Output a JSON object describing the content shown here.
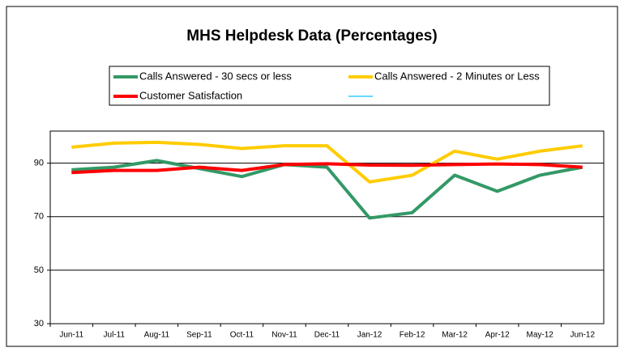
{
  "chart_data": {
    "type": "line",
    "title": "MHS Helpdesk Data (Percentages)",
    "categories": [
      "Jun-11",
      "Jul-11",
      "Aug-11",
      "Sep-11",
      "Oct-11",
      "Nov-11",
      "Dec-11",
      "Jan-12",
      "Feb-12",
      "Mar-12",
      "Apr-12",
      "May-12",
      "Jun-12"
    ],
    "series": [
      {
        "name": "Calls Answered - 30 secs or less",
        "color": "#339966",
        "values": [
          87.5,
          88.5,
          91,
          88,
          85,
          89.5,
          88.5,
          69.5,
          71.5,
          85.5,
          79.5,
          85.5,
          88.5
        ]
      },
      {
        "name": "Calls Answered - 2 Minutes or Less",
        "color": "#ffcc00",
        "values": [
          96,
          97.5,
          97.8,
          97,
          95.5,
          96.5,
          96.5,
          83,
          85.5,
          94.5,
          91.5,
          94.5,
          96.5
        ]
      },
      {
        "name": "Customer Satisfaction",
        "color": "#ff0000",
        "values": [
          86.5,
          87.3,
          87.3,
          88.5,
          87.3,
          89.5,
          89.8,
          89.3,
          89.2,
          89.5,
          89.7,
          89.5,
          88.5
        ]
      }
    ],
    "ylim": [
      30,
      102
    ],
    "yticks": [
      30,
      50,
      70,
      90
    ],
    "grid": true
  }
}
